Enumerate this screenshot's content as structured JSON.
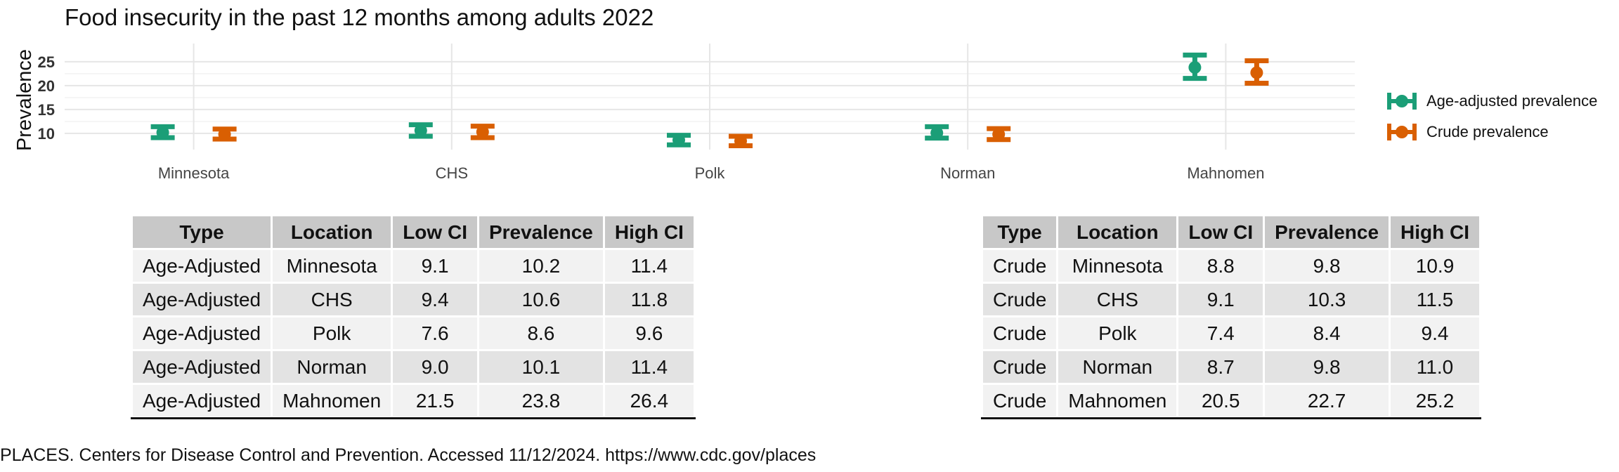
{
  "chart_data": {
    "type": "errorbar",
    "title": "Food insecurity in the past 12 months among adults 2022",
    "ylabel": "Prevalence",
    "xlabel": "",
    "ylim": [
      6.6,
      28.8
    ],
    "yticks": [
      10,
      15,
      20,
      25
    ],
    "categories": [
      "Minnesota",
      "CHS",
      "Polk",
      "Norman",
      "Mahnomen"
    ],
    "grid": true,
    "legend_position": "right",
    "series": [
      {
        "name": "Age-adjusted prevalence",
        "color": "#1B9E77",
        "values": [
          10.2,
          10.6,
          8.6,
          10.1,
          23.8
        ],
        "low": [
          9.1,
          9.4,
          7.6,
          9.0,
          21.5
        ],
        "high": [
          11.4,
          11.8,
          9.6,
          11.4,
          26.4
        ]
      },
      {
        "name": "Crude prevalence",
        "color": "#D95F02",
        "values": [
          9.8,
          10.3,
          8.4,
          9.8,
          22.7
        ],
        "low": [
          8.8,
          9.1,
          7.4,
          8.7,
          20.5
        ],
        "high": [
          10.9,
          11.5,
          9.4,
          11.0,
          25.2
        ]
      }
    ]
  },
  "tables": {
    "headers": [
      "Type",
      "Location",
      "Low CI",
      "Prevalence",
      "High CI"
    ],
    "age_adjusted_rows": [
      [
        "Age-Adjusted",
        "Minnesota",
        "9.1",
        "10.2",
        "11.4"
      ],
      [
        "Age-Adjusted",
        "CHS",
        "9.4",
        "10.6",
        "11.8"
      ],
      [
        "Age-Adjusted",
        "Polk",
        "7.6",
        "8.6",
        "9.6"
      ],
      [
        "Age-Adjusted",
        "Norman",
        "9.0",
        "10.1",
        "11.4"
      ],
      [
        "Age-Adjusted",
        "Mahnomen",
        "21.5",
        "23.8",
        "26.4"
      ]
    ],
    "crude_rows": [
      [
        "Crude",
        "Minnesota",
        "8.8",
        "9.8",
        "10.9"
      ],
      [
        "Crude",
        "CHS",
        "9.1",
        "10.3",
        "11.5"
      ],
      [
        "Crude",
        "Polk",
        "7.4",
        "8.4",
        "9.4"
      ],
      [
        "Crude",
        "Norman",
        "8.7",
        "9.8",
        "11.0"
      ],
      [
        "Crude",
        "Mahnomen",
        "20.5",
        "22.7",
        "25.2"
      ]
    ]
  },
  "source": "PLACES. Centers for Disease Control and Prevention. Accessed 11/12/2024. https://www.cdc.gov/places"
}
